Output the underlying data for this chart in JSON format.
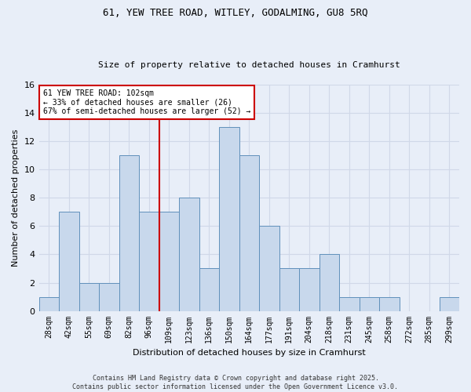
{
  "title1": "61, YEW TREE ROAD, WITLEY, GODALMING, GU8 5RQ",
  "title2": "Size of property relative to detached houses in Cramhurst",
  "xlabel": "Distribution of detached houses by size in Cramhurst",
  "ylabel": "Number of detached properties",
  "categories": [
    "28sqm",
    "42sqm",
    "55sqm",
    "69sqm",
    "82sqm",
    "96sqm",
    "109sqm",
    "123sqm",
    "136sqm",
    "150sqm",
    "164sqm",
    "177sqm",
    "191sqm",
    "204sqm",
    "218sqm",
    "231sqm",
    "245sqm",
    "258sqm",
    "272sqm",
    "285sqm",
    "299sqm"
  ],
  "values": [
    1,
    7,
    2,
    2,
    11,
    7,
    7,
    8,
    3,
    13,
    11,
    6,
    3,
    3,
    4,
    1,
    1,
    1,
    0,
    0,
    1
  ],
  "bar_color": "#c8d8ec",
  "bar_edge_color": "#6090bb",
  "property_line_index": 6,
  "annotation_text": "61 YEW TREE ROAD: 102sqm\n← 33% of detached houses are smaller (26)\n67% of semi-detached houses are larger (52) →",
  "annotation_box_color": "white",
  "annotation_box_edge_color": "#cc0000",
  "vline_color": "#cc0000",
  "grid_color": "#d0d8e8",
  "background_color": "#e8eef8",
  "footer1": "Contains HM Land Registry data © Crown copyright and database right 2025.",
  "footer2": "Contains public sector information licensed under the Open Government Licence v3.0.",
  "ylim": [
    0,
    16
  ],
  "yticks": [
    0,
    2,
    4,
    6,
    8,
    10,
    12,
    14,
    16
  ],
  "title1_fontsize": 9,
  "title2_fontsize": 8,
  "ylabel_fontsize": 8,
  "xlabel_fontsize": 8,
  "tick_fontsize": 7,
  "footer_fontsize": 6,
  "ann_fontsize": 7
}
